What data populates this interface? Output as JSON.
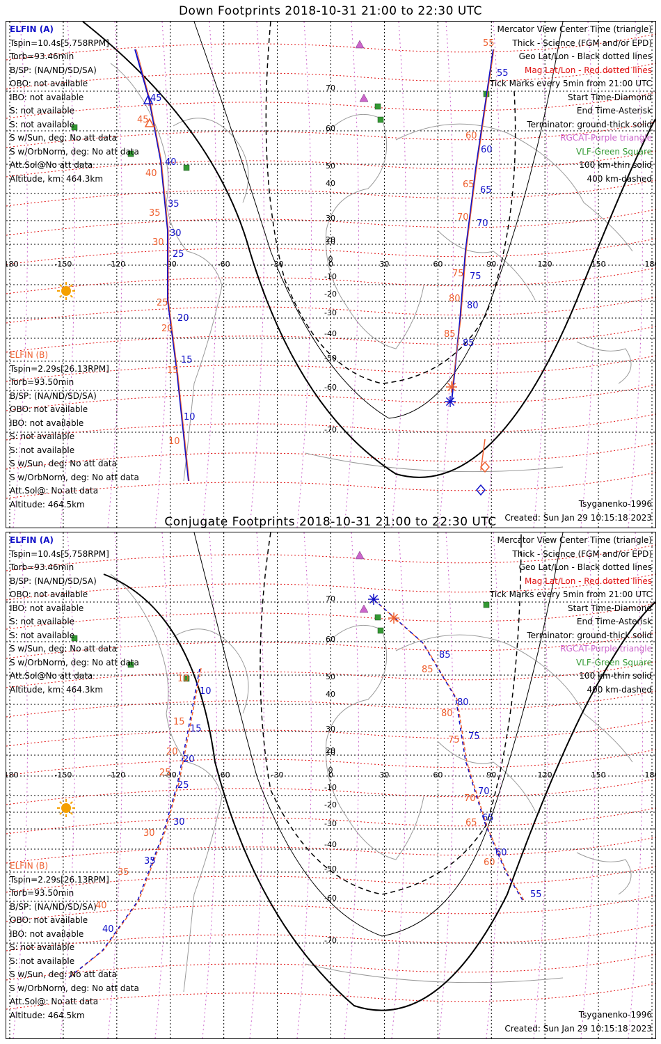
{
  "panels": [
    {
      "title": "Down Footprints 2018-10-31 21:00 to 22:30 UTC",
      "elfin_a": {
        "header": "ELFIN (A)",
        "lines": [
          "Tspin=10.4s[5.758RPM]",
          "Torb=93.46min",
          "B/SP: (NA/ND/SD/SA)",
          "OBO: not available",
          "IBO: not available",
          "S: not available",
          "S: not available",
          "S w/Sun, deg: No att data",
          "S w/OrbNorm, deg: No att data",
          "Att.Sol@No att data",
          "Altitude, km: 464.3km"
        ]
      },
      "elfin_b": {
        "header": "ELFIN (B)",
        "lines": [
          "Tspin=2.29s[26.13RPM]",
          "Torb=93.50min",
          "B/SP: (NA/ND/SD/SA)",
          "OBO: not available",
          "IBO: not available",
          "S: not available",
          "S: not available",
          "S w/Sun, deg: No att data",
          "S w/OrbNorm, deg: No att data",
          "Att.Sol@: No att data"
        ],
        "altitude": "Altitude: 464.5km"
      },
      "legend": [
        "Mercator View Center Time (triangle)",
        "Thick - Science (FGM and/or EPD)",
        "Geo Lat/Lon - Black dotted lines",
        "Mag Lat/Lon - Red dotted lines",
        "Tick Marks every 5min from 21:00 UTC",
        "Start Time-Diamond",
        "End Time-Asterisk",
        "Terminator: ground-thick solid",
        "RGCAT-Purple triangle",
        "VLF-Green Square",
        "100 km-thin solid",
        "400 km-dashed"
      ],
      "model": "Tsyganenko-1996",
      "created": "Created: Sun Jan 29 10:15:18 2023",
      "track_a_labels": [
        "45",
        "40",
        "35",
        "30",
        "25",
        "20",
        "15",
        "10",
        "55",
        "60",
        "65",
        "70",
        "75",
        "80",
        "85"
      ],
      "track_b_labels": [
        "45",
        "40",
        "35",
        "30",
        "25",
        "20",
        "15",
        "10",
        "55",
        "60",
        "65",
        "70",
        "75",
        "80",
        "85"
      ]
    },
    {
      "title": "Conjugate Footprints 2018-10-31 21:00 to 22:30 UTC",
      "elfin_a": {
        "header": "ELFIN (A)",
        "lines": [
          "Tspin=10.4s[5.758RPM]",
          "Torb=93.46min",
          "B/SP: (NA/ND/SD/SA)",
          "OBO: not available",
          "IBO: not available",
          "S: not available",
          "S: not available",
          "S w/Sun, deg: No att data",
          "S w/OrbNorm, deg: No att data",
          "Att.Sol@No att data",
          "Altitude, km: 464.3km"
        ]
      },
      "elfin_b": {
        "header": "ELFIN (B)",
        "lines": [
          "Tspin=2.29s[26.13RPM]",
          "Torb=93.50min",
          "B/SP: (NA/ND/SD/SA)",
          "OBO: not available",
          "IBO: not available",
          "S: not available",
          "S: not available",
          "S w/Sun, deg: No att data",
          "S w/OrbNorm, deg: No att data",
          "Att.Sol@: No att data"
        ],
        "altitude": "Altitude: 464.5km"
      },
      "legend": [
        "Mercator View Center Time (triangle)",
        "Thick - Science (FGM and/or EPD)",
        "Geo Lat/Lon - Black dotted lines",
        "Mag Lat/Lon - Red dotted lines",
        "Tick Marks every 5min from 21:00 UTC",
        "Start Time-Diamond",
        "End Time-Asterisk",
        "Terminator: ground-thick solid",
        "RGCAT-Purple triangle",
        "VLF-Green Square",
        "100 km-thin solid",
        "400 km-dashed"
      ],
      "model": "Tsyganenko-1996",
      "created": "Created: Sun Jan 29 10:15:18 2023",
      "track_a_labels": [
        "10",
        "15",
        "20",
        "25",
        "30",
        "35",
        "40",
        "85",
        "80",
        "75",
        "70",
        "65",
        "60",
        "55"
      ],
      "track_b_labels": [
        "10",
        "15",
        "20",
        "25",
        "30",
        "35",
        "40",
        "85",
        "80",
        "75",
        "70",
        "65",
        "60"
      ]
    }
  ],
  "axes": {
    "lon_ticks": [
      "-180",
      "-150",
      "-120",
      "-90",
      "-60",
      "-30",
      "0",
      "30",
      "60",
      "90",
      "120",
      "150",
      "180"
    ],
    "lat_ticks": [
      "70",
      "60",
      "50",
      "40",
      "30",
      "20",
      "10",
      "0",
      "-10",
      "-20",
      "-30",
      "-40",
      "-50",
      "-60",
      "-70"
    ]
  },
  "colors": {
    "elfin_a": "#1010c8",
    "elfin_b": "#ee6030",
    "mag_grid": "#e01010",
    "geo_grid": "#000000",
    "rgcat": "#cc66cc",
    "vlf": "#339933",
    "sun": "#f5a000"
  }
}
